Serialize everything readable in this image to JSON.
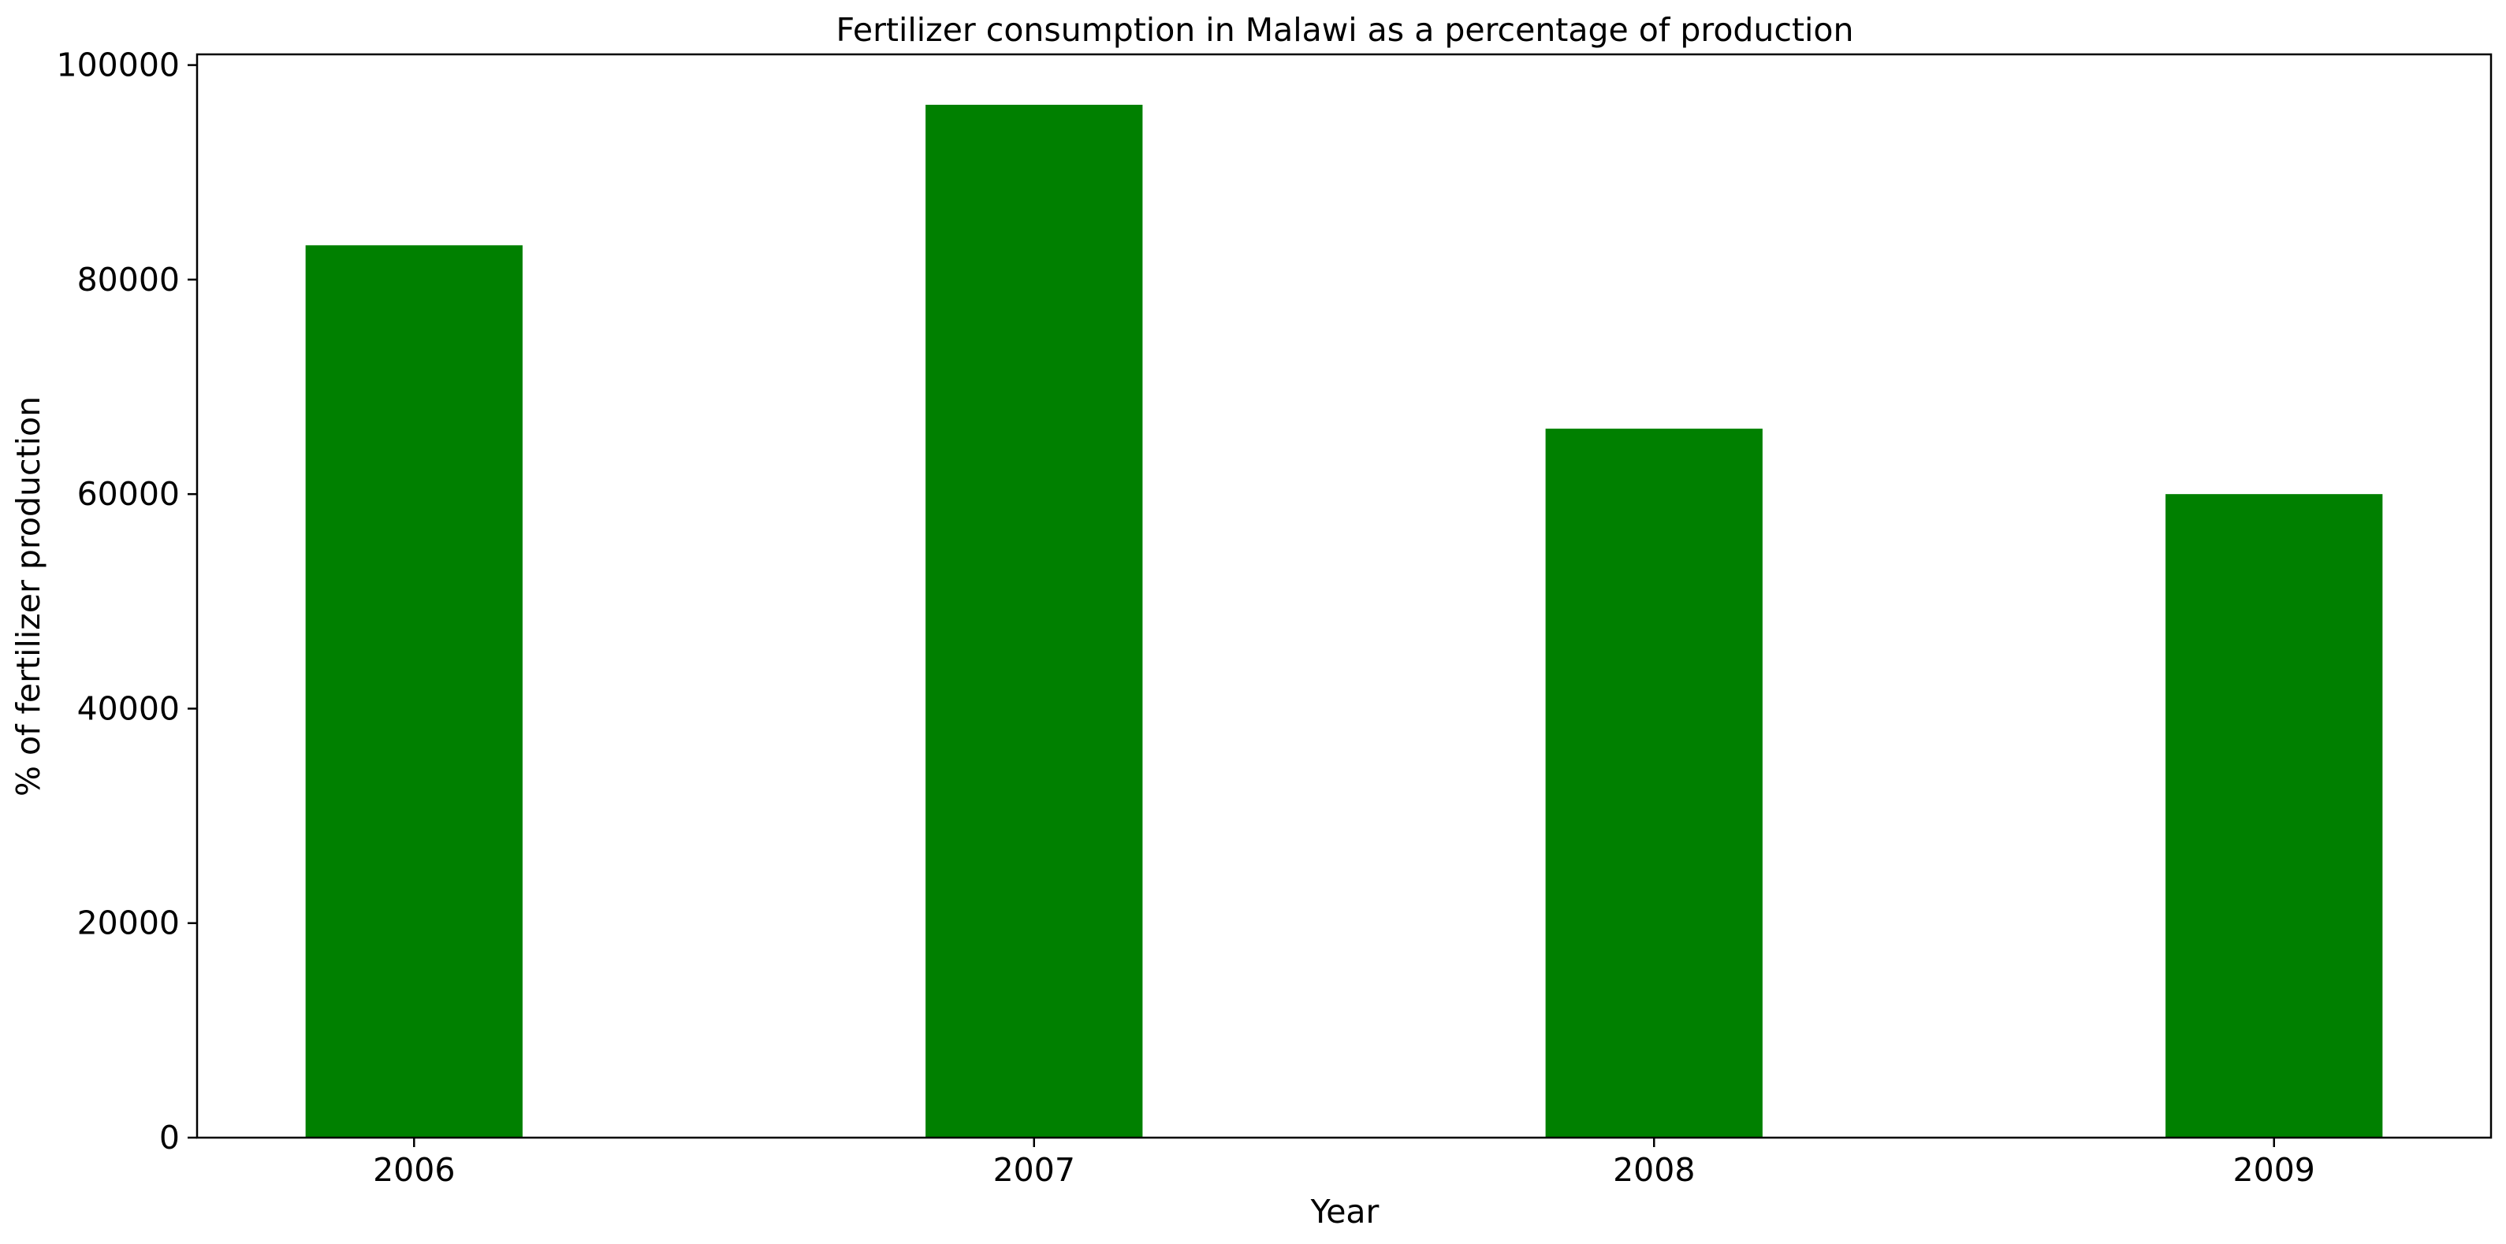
{
  "chart_data": {
    "type": "bar",
    "title": "Fertilizer consumption in Malawi as a percentage of production",
    "xlabel": "Year",
    "ylabel": "% of fertilizer production",
    "categories": [
      "2006",
      "2007",
      "2008",
      "2009"
    ],
    "values": [
      83200,
      96300,
      66100,
      60000
    ],
    "ylim": [
      0,
      101000
    ],
    "yticks": [
      0,
      20000,
      40000,
      60000,
      80000,
      100000
    ],
    "bar_color": "#008000",
    "grid": false,
    "legend": "none"
  }
}
